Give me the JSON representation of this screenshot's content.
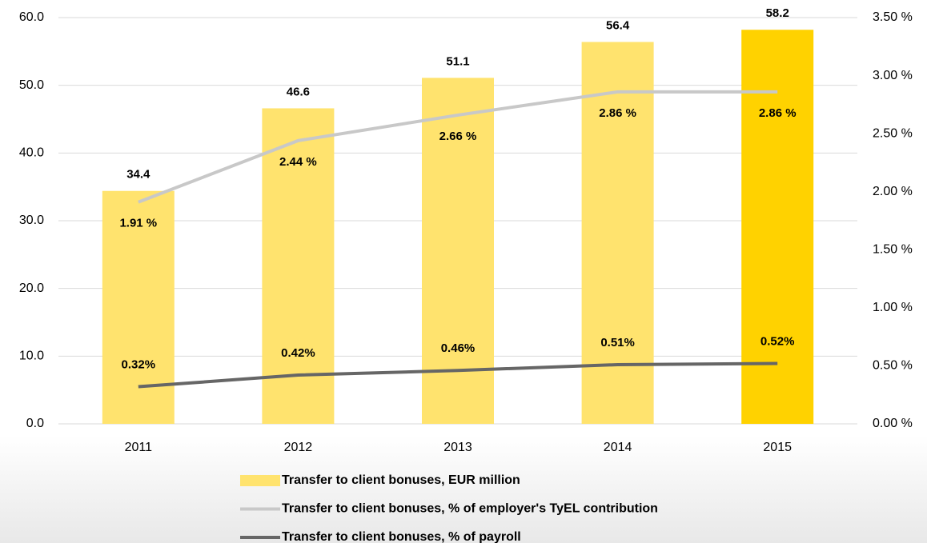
{
  "chart_data": {
    "type": "bar",
    "categories": [
      "2011",
      "2012",
      "2013",
      "2014",
      "2015"
    ],
    "series": [
      {
        "name": "Transfer to client bonuses, EUR million",
        "type": "bar",
        "axis": "y",
        "color": "#ffe36e",
        "bar_colors": [
          "#ffe36e",
          "#ffe36e",
          "#ffe36e",
          "#ffe36e",
          "#ffd200"
        ],
        "values": [
          34.4,
          46.6,
          51.1,
          56.4,
          58.2
        ]
      },
      {
        "name": "Transfer to client bonuses, % of employer's TyEL contribution",
        "type": "line",
        "axis": "y2",
        "color": "#c8c8c8",
        "values": [
          1.91,
          2.44,
          2.66,
          2.86,
          2.86
        ],
        "value_labels": [
          "1.91 %",
          "2.44 %",
          "2.66 %",
          "2.86 %",
          "2.86 %"
        ]
      },
      {
        "name": "Transfer to client bonuses, % of payroll",
        "type": "line",
        "axis": "y2",
        "color": "#666666",
        "values": [
          0.32,
          0.42,
          0.46,
          0.51,
          0.52
        ],
        "value_labels": [
          "0.32%",
          "0.42%",
          "0.46%",
          "0.51%",
          "0.52%"
        ]
      }
    ],
    "ylim": [
      0,
      60
    ],
    "yticks": [
      {
        "value": 0,
        "label": "0.0"
      },
      {
        "value": 10,
        "label": "10.0"
      },
      {
        "value": 20,
        "label": "20.0"
      },
      {
        "value": 30,
        "label": "30.0"
      },
      {
        "value": 40,
        "label": "40.0"
      },
      {
        "value": 50,
        "label": "50.0"
      },
      {
        "value": 60,
        "label": "60.0"
      }
    ],
    "y2lim": [
      0,
      3.5
    ],
    "y2ticks": [
      {
        "value": 0,
        "label": "0.00 %"
      },
      {
        "value": 0.5,
        "label": "0.50 %"
      },
      {
        "value": 1,
        "label": "1.00 %"
      },
      {
        "value": 1.5,
        "label": "1.50 %"
      },
      {
        "value": 2,
        "label": "2.00 %"
      },
      {
        "value": 2.5,
        "label": "2.50 %"
      },
      {
        "value": 3,
        "label": "3.00 %"
      },
      {
        "value": 3.5,
        "label": "3.50 %"
      }
    ],
    "grid": true
  }
}
